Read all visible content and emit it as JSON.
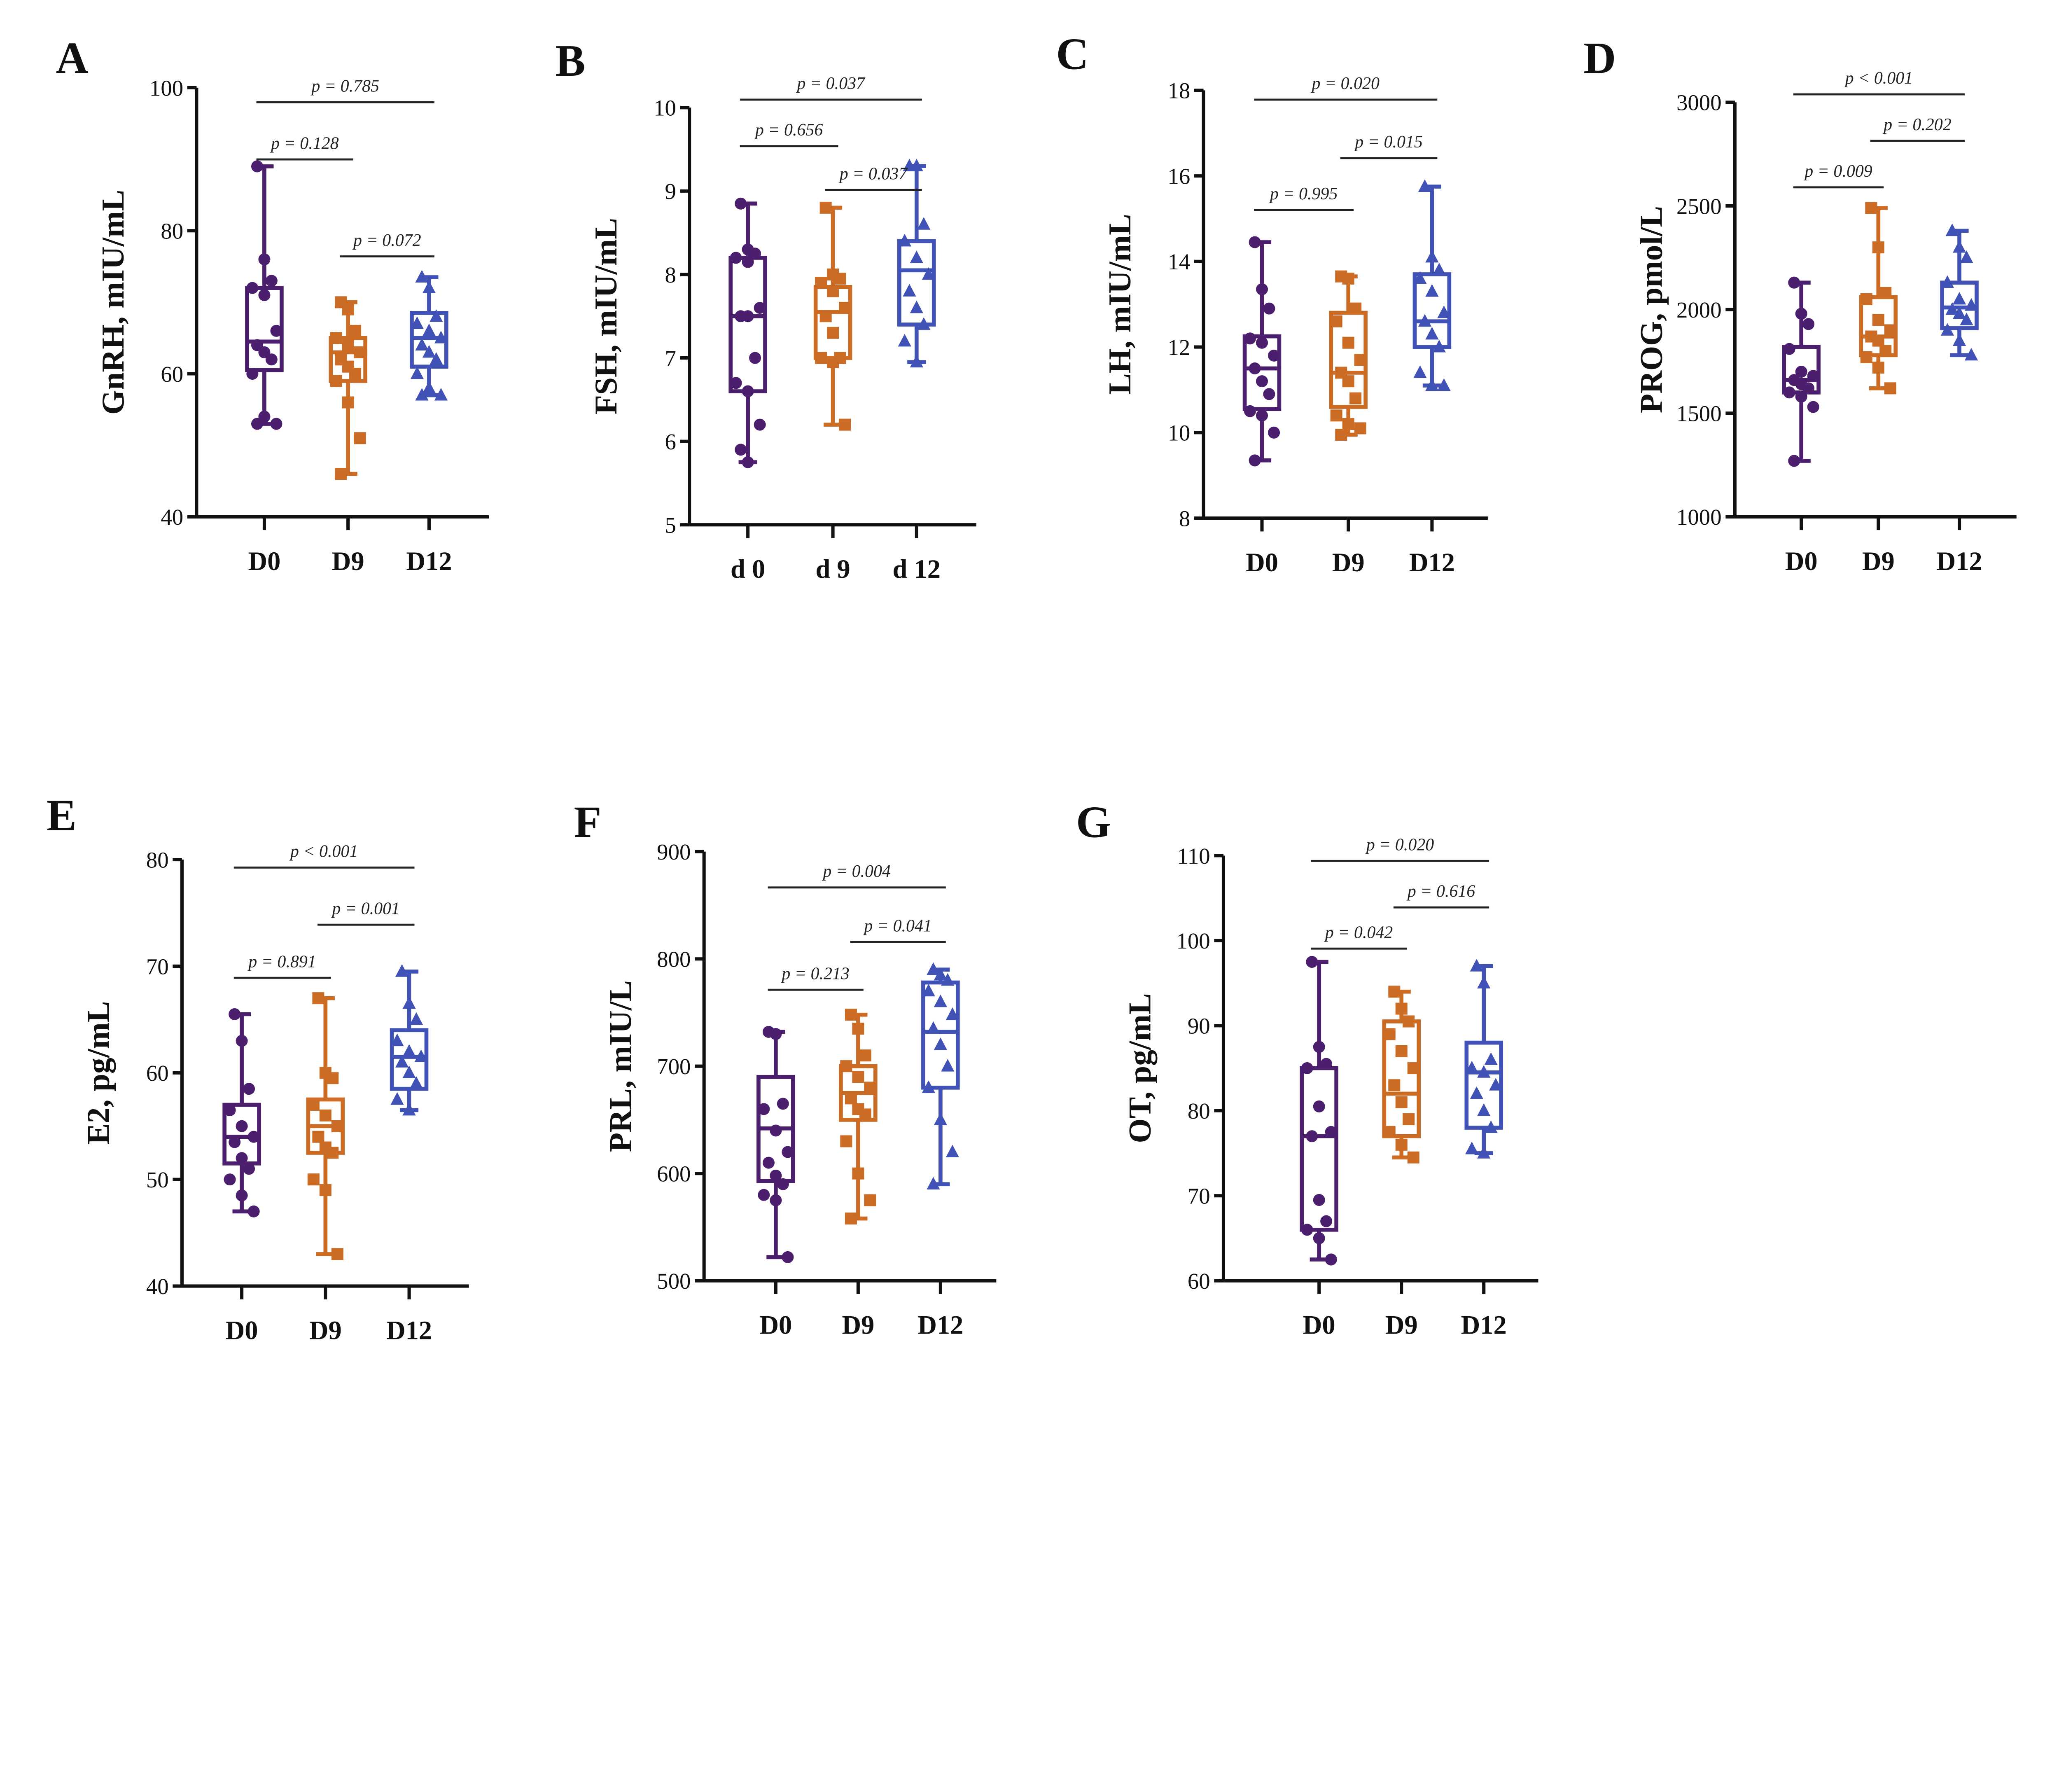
{
  "colors": {
    "D0": "#4b1e6e",
    "D9": "#cc6c24",
    "D12": "#4052b5",
    "axis": "#111111"
  },
  "chart_data": [
    {
      "type": "box",
      "panel": "A",
      "ylabel": "GnRH, mIU/mL",
      "ylim": [
        40,
        100
      ],
      "yticks": [
        40,
        60,
        80,
        100
      ],
      "categories": [
        "D0",
        "D9",
        "D12"
      ],
      "boxes": [
        {
          "min": 53,
          "q1": 60.5,
          "median": 64.5,
          "q3": 72,
          "max": 89,
          "points": [
            89,
            76,
            73,
            72,
            71,
            66,
            64,
            63,
            62,
            60,
            54,
            53,
            53
          ]
        },
        {
          "min": 46,
          "q1": 59,
          "median": 63,
          "q3": 65,
          "max": 70,
          "points": [
            70,
            69,
            66,
            65,
            64,
            63,
            62,
            61,
            60,
            59,
            56,
            51,
            46
          ]
        },
        {
          "min": 57,
          "q1": 61,
          "median": 65,
          "q3": 68.5,
          "max": 73.5,
          "points": [
            73.5,
            72,
            68,
            67,
            66,
            65,
            64,
            63,
            62,
            60,
            58,
            57,
            57
          ]
        }
      ],
      "comparisons": [
        {
          "pair": [
            0,
            2
          ],
          "label": "p = 0.785"
        },
        {
          "pair": [
            0,
            1
          ],
          "label": "p = 0.128"
        },
        {
          "pair": [
            1,
            2
          ],
          "label": "p = 0.072"
        }
      ]
    },
    {
      "type": "box",
      "panel": "B",
      "ylabel": "FSH, mIU/mL",
      "ylim": [
        5,
        10
      ],
      "yticks": [
        5,
        6,
        7,
        8,
        9,
        10
      ],
      "categories": [
        "d 0",
        "d 9",
        "d 12"
      ],
      "boxes": [
        {
          "min": 5.75,
          "q1": 6.6,
          "median": 7.5,
          "q3": 8.2,
          "max": 8.85,
          "points": [
            8.85,
            8.3,
            8.25,
            8.2,
            8.15,
            7.6,
            7.5,
            7.5,
            7.0,
            6.7,
            6.6,
            6.2,
            5.9,
            5.75
          ]
        },
        {
          "min": 6.2,
          "q1": 7.0,
          "median": 7.55,
          "q3": 7.85,
          "max": 8.8,
          "points": [
            8.8,
            8.0,
            7.95,
            7.9,
            7.8,
            7.6,
            7.5,
            7.3,
            7.0,
            7.0,
            6.95,
            6.2
          ]
        },
        {
          "min": 6.95,
          "q1": 7.4,
          "median": 8.05,
          "q3": 8.4,
          "max": 9.3,
          "points": [
            9.3,
            9.3,
            8.6,
            8.4,
            8.2,
            8.0,
            7.8,
            7.6,
            7.4,
            7.2,
            6.95
          ]
        }
      ],
      "comparisons": [
        {
          "pair": [
            0,
            2
          ],
          "label": "p = 0.037"
        },
        {
          "pair": [
            1,
            2
          ],
          "label": "p = 0.037"
        },
        {
          "pair": [
            0,
            1
          ],
          "label": "p = 0.656"
        }
      ]
    },
    {
      "type": "box",
      "panel": "C",
      "ylabel": "LH, mIU/mL",
      "ylim": [
        8,
        18
      ],
      "yticks": [
        8,
        10,
        12,
        14,
        16,
        18
      ],
      "categories": [
        "D0",
        "D9",
        "D12"
      ],
      "boxes": [
        {
          "min": 9.35,
          "q1": 10.55,
          "median": 11.5,
          "q3": 12.25,
          "max": 14.45,
          "points": [
            14.45,
            13.35,
            12.9,
            12.2,
            12.1,
            11.8,
            11.5,
            11.2,
            10.9,
            10.5,
            10.4,
            10.0,
            9.35
          ]
        },
        {
          "min": 9.95,
          "q1": 10.6,
          "median": 11.4,
          "q3": 12.8,
          "max": 13.65,
          "points": [
            13.65,
            13.6,
            12.9,
            12.6,
            12.1,
            11.7,
            11.4,
            11.2,
            10.8,
            10.4,
            10.2,
            10.1,
            9.95
          ]
        },
        {
          "min": 11.1,
          "q1": 12.0,
          "median": 12.6,
          "q3": 13.7,
          "max": 15.75,
          "points": [
            15.75,
            14.1,
            13.8,
            13.6,
            13.3,
            12.8,
            12.6,
            12.3,
            12.0,
            11.4,
            11.1,
            11.1
          ]
        }
      ],
      "comparisons": [
        {
          "pair": [
            0,
            2
          ],
          "label": "p = 0.020"
        },
        {
          "pair": [
            1,
            2
          ],
          "label": "p = 0.015"
        },
        {
          "pair": [
            0,
            1
          ],
          "label": "p = 0.995"
        }
      ]
    },
    {
      "type": "box",
      "panel": "D",
      "ylabel": "PROG, pmol/L",
      "ylim": [
        1000,
        3000
      ],
      "yticks": [
        1000,
        1500,
        2000,
        2500,
        3000
      ],
      "categories": [
        "D0",
        "D9",
        "D12"
      ],
      "boxes": [
        {
          "min": 1270,
          "q1": 1600,
          "median": 1660,
          "q3": 1820,
          "max": 2130,
          "points": [
            2130,
            1980,
            1930,
            1810,
            1700,
            1680,
            1660,
            1640,
            1620,
            1600,
            1580,
            1530,
            1270
          ]
        },
        {
          "min": 1620,
          "q1": 1780,
          "median": 1870,
          "q3": 2060,
          "max": 2490,
          "points": [
            2490,
            2300,
            2080,
            2050,
            1950,
            1900,
            1870,
            1850,
            1800,
            1770,
            1720,
            1620
          ]
        },
        {
          "min": 1780,
          "q1": 1910,
          "median": 2010,
          "q3": 2130,
          "max": 2380,
          "points": [
            2380,
            2300,
            2250,
            2130,
            2050,
            2020,
            2000,
            1980,
            1950,
            1900,
            1850,
            1780
          ]
        }
      ],
      "comparisons": [
        {
          "pair": [
            0,
            2
          ],
          "label": "p < 0.001"
        },
        {
          "pair": [
            1,
            2
          ],
          "label": "p = 0.202"
        },
        {
          "pair": [
            0,
            1
          ],
          "label": "p = 0.009"
        }
      ]
    },
    {
      "type": "box",
      "panel": "E",
      "ylabel": "E2, pg/mL",
      "ylim": [
        40,
        80
      ],
      "yticks": [
        40,
        50,
        60,
        70,
        80
      ],
      "categories": [
        "D0",
        "D9",
        "D12"
      ],
      "boxes": [
        {
          "min": 47,
          "q1": 51.5,
          "median": 54,
          "q3": 57,
          "max": 65.5,
          "points": [
            65.5,
            63,
            58.5,
            56.5,
            55,
            54,
            53.5,
            52,
            51,
            50,
            48.5,
            47
          ]
        },
        {
          "min": 43,
          "q1": 52.5,
          "median": 55,
          "q3": 57.5,
          "max": 67,
          "points": [
            67,
            60,
            59.5,
            57,
            56,
            55,
            54,
            53,
            52.5,
            50,
            49,
            43
          ]
        },
        {
          "min": 56.5,
          "q1": 58.5,
          "median": 61.5,
          "q3": 64,
          "max": 69.5,
          "points": [
            69.5,
            66.5,
            65,
            63,
            62,
            61.5,
            61,
            60,
            59,
            57.5,
            56.5
          ]
        }
      ],
      "comparisons": [
        {
          "pair": [
            0,
            2
          ],
          "label": "p < 0.001"
        },
        {
          "pair": [
            1,
            2
          ],
          "label": "p = 0.001"
        },
        {
          "pair": [
            0,
            1
          ],
          "label": "p = 0.891"
        }
      ]
    },
    {
      "type": "box",
      "panel": "F",
      "ylabel": "PRL, mIU/L",
      "ylim": [
        500,
        900
      ],
      "yticks": [
        500,
        600,
        700,
        800,
        900
      ],
      "categories": [
        "D0",
        "D9",
        "D12"
      ],
      "boxes": [
        {
          "min": 522,
          "q1": 593,
          "median": 642,
          "q3": 690,
          "max": 732,
          "points": [
            732,
            730,
            665,
            660,
            640,
            620,
            610,
            598,
            590,
            580,
            575,
            522
          ]
        },
        {
          "min": 558,
          "q1": 650,
          "median": 675,
          "q3": 700,
          "max": 748,
          "points": [
            748,
            735,
            710,
            700,
            690,
            680,
            670,
            660,
            655,
            630,
            600,
            575,
            558
          ]
        },
        {
          "min": 590,
          "q1": 680,
          "median": 732,
          "q3": 778,
          "max": 790,
          "points": [
            790,
            785,
            780,
            770,
            760,
            748,
            735,
            720,
            700,
            680,
            650,
            620,
            590
          ]
        }
      ],
      "comparisons": [
        {
          "pair": [
            0,
            2
          ],
          "label": "p = 0.004"
        },
        {
          "pair": [
            1,
            2
          ],
          "label": "p = 0.041"
        },
        {
          "pair": [
            0,
            1
          ],
          "label": "p = 0.213"
        }
      ]
    },
    {
      "type": "box",
      "panel": "G",
      "ylabel": "OT, pg/mL",
      "ylim": [
        60,
        110
      ],
      "yticks": [
        60,
        70,
        80,
        90,
        100,
        110
      ],
      "categories": [
        "D0",
        "D9",
        "D12"
      ],
      "boxes": [
        {
          "min": 62.5,
          "q1": 66,
          "median": 77,
          "q3": 85,
          "max": 97.5,
          "points": [
            97.5,
            87.5,
            85.5,
            85,
            80.5,
            77.5,
            77,
            69.5,
            67,
            66,
            65,
            62.5
          ]
        },
        {
          "min": 74.5,
          "q1": 77,
          "median": 82,
          "q3": 90.5,
          "max": 94,
          "points": [
            94,
            92,
            90.5,
            89,
            87,
            85,
            83,
            81,
            79,
            77.5,
            76,
            74.5
          ]
        },
        {
          "min": 75,
          "q1": 78,
          "median": 84.5,
          "q3": 88,
          "max": 97,
          "points": [
            97,
            95,
            86,
            85,
            84.5,
            83,
            82,
            80,
            78,
            75.5,
            75
          ]
        }
      ],
      "comparisons": [
        {
          "pair": [
            0,
            2
          ],
          "label": "p = 0.020"
        },
        {
          "pair": [
            1,
            2
          ],
          "label": "p = 0.616"
        },
        {
          "pair": [
            0,
            1
          ],
          "label": "p = 0.042"
        }
      ]
    }
  ]
}
